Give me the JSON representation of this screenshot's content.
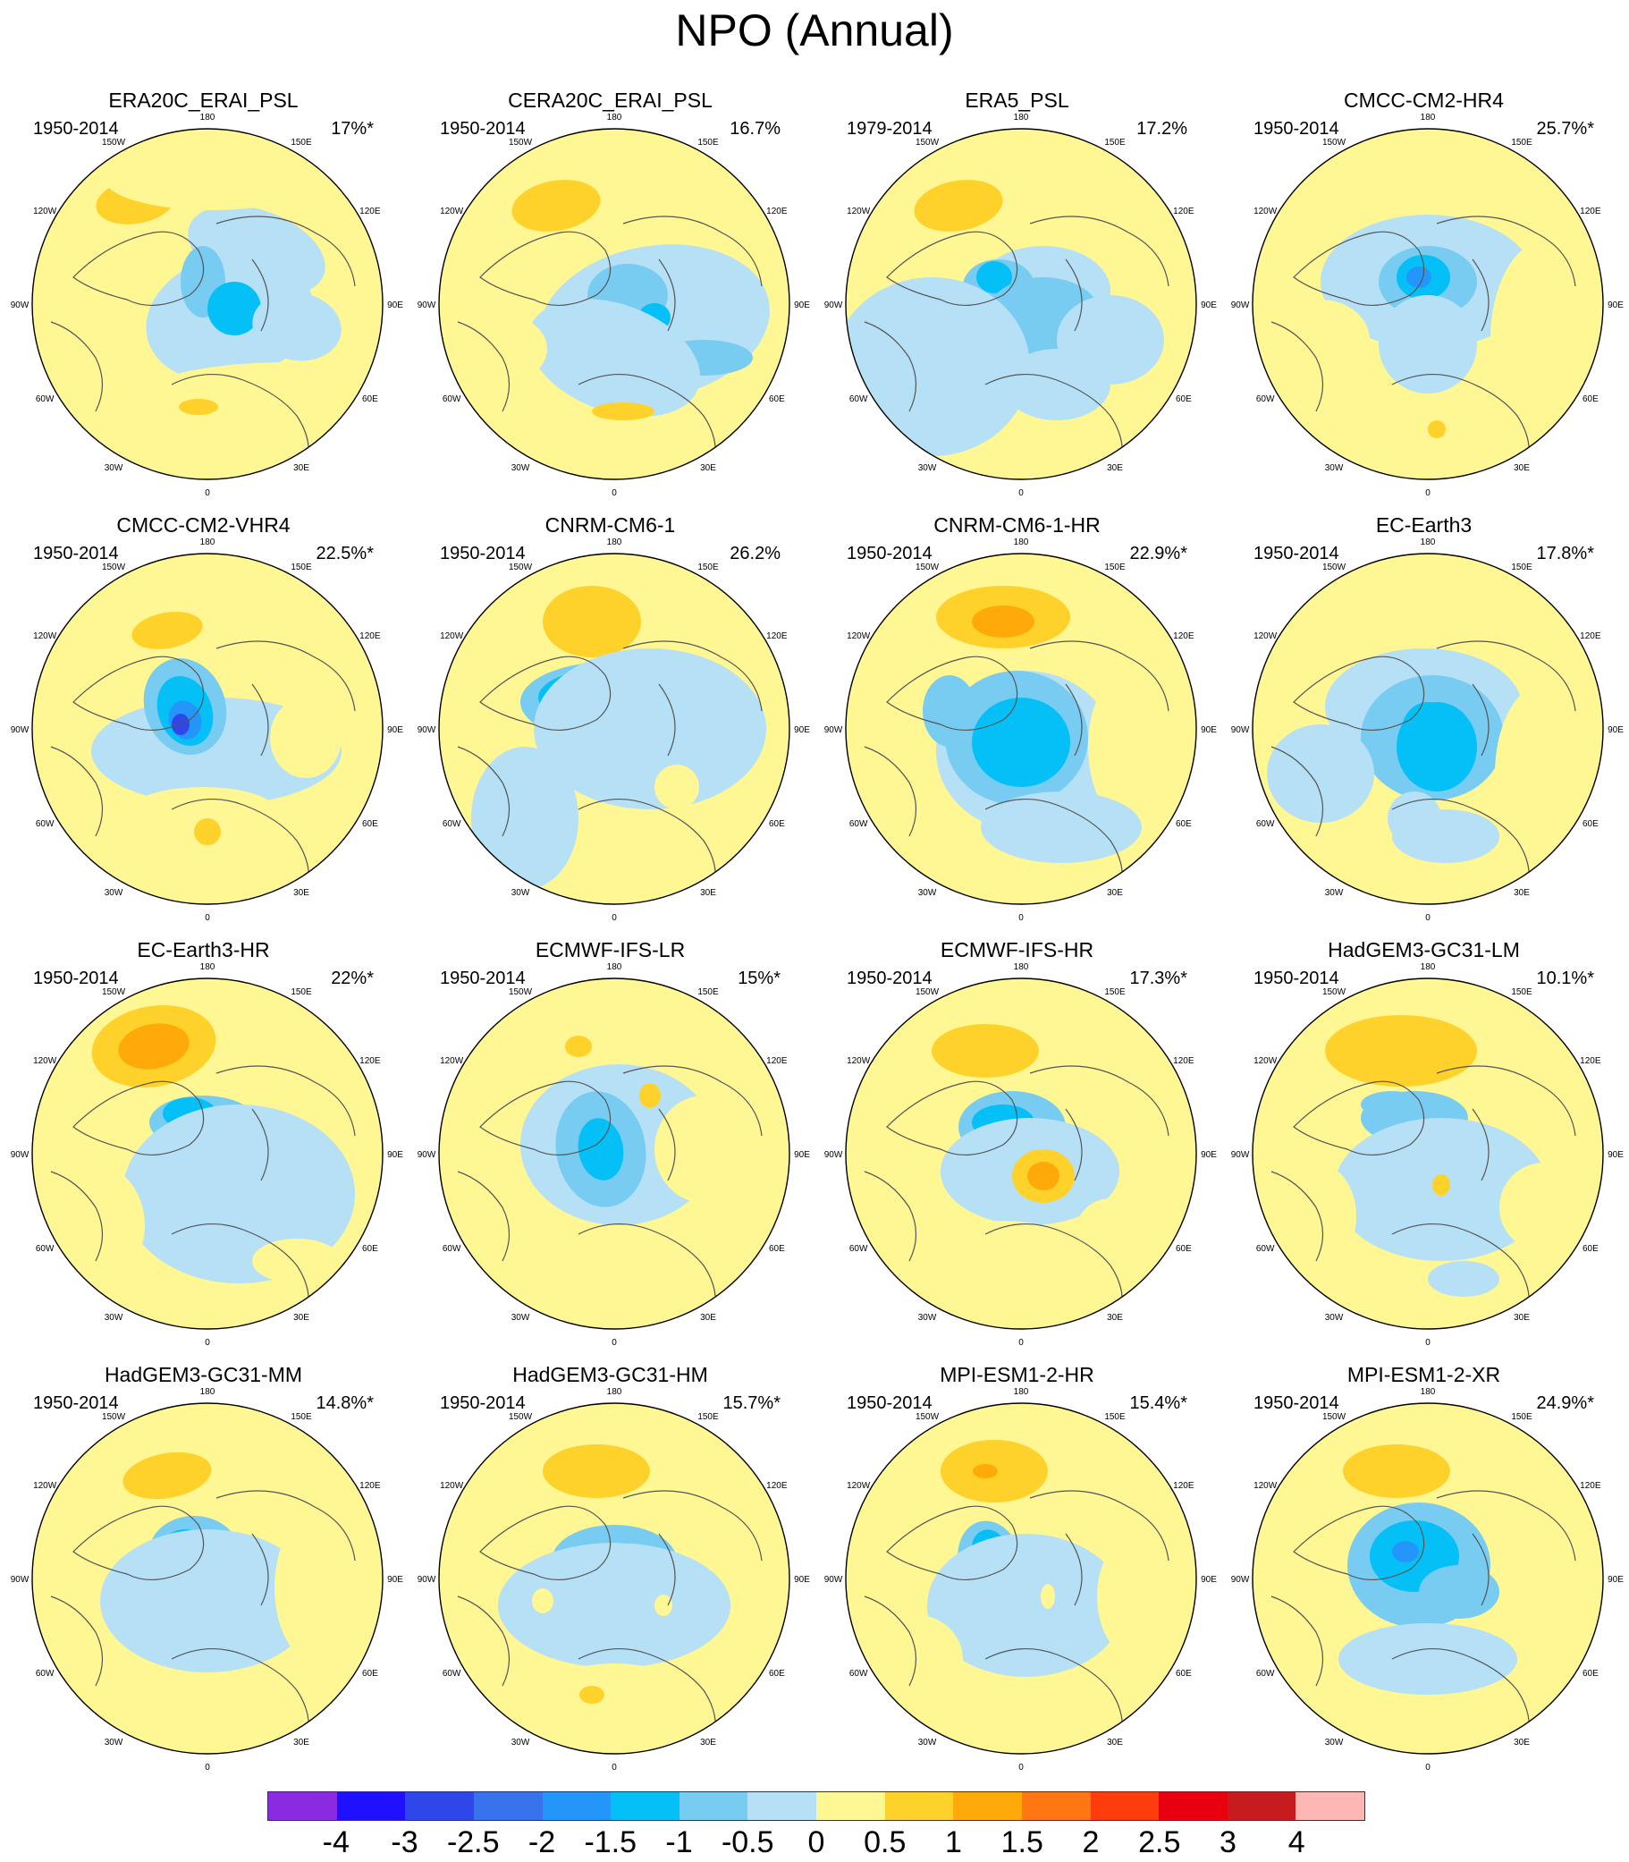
{
  "figure": {
    "title": "NPO (Annual)"
  },
  "colorbar": {
    "colors": [
      "#8a2be2",
      "#1f10ff",
      "#2f46ea",
      "#3872ec",
      "#2496fa",
      "#05c0f7",
      "#78cbf1",
      "#b6e0f6",
      "#fff694",
      "#ffd22b",
      "#ffaa08",
      "#ff7712",
      "#ff3c0c",
      "#e8000e",
      "#c71c1f",
      "#ffb7b3"
    ],
    "ticks": [
      "-4",
      "-3",
      "-2.5",
      "-2",
      "-1.5",
      "-1",
      "-0.5",
      "0",
      "0.5",
      "1",
      "1.5",
      "2",
      "2.5",
      "3",
      "4"
    ]
  },
  "longitude_labels": [
    "180",
    "150E",
    "120E",
    "90E",
    "60E",
    "30E",
    "0",
    "30W",
    "60W",
    "90W",
    "120W",
    "150W"
  ],
  "panels": [
    {
      "title": "ERA20C_ERAI_PSL",
      "period": "1950-2014",
      "variance": "17%*",
      "patches": [
        [
          120,
          115,
          45,
          25,
          -10,
          "#ffd22b"
        ],
        [
          255,
          170,
          80,
          45,
          20,
          "#b6e0f6"
        ],
        [
          225,
          245,
          95,
          70,
          -15,
          "#b6e0f6"
        ],
        [
          195,
          205,
          25,
          40,
          0,
          "#78cbf1"
        ],
        [
          230,
          235,
          30,
          30,
          0,
          "#05c0f7"
        ],
        [
          300,
          255,
          50,
          38,
          10,
          "#b6e0f6"
        ],
        [
          290,
          345,
          185,
          50,
          0,
          "#fff694"
        ],
        [
          190,
          345,
          22,
          9,
          0,
          "#ffd22b"
        ],
        [
          205,
          90,
          120,
          35,
          0,
          "#fff694"
        ]
      ]
    },
    {
      "title": "CERA20C_ERAI_PSL",
      "period": "1950-2014",
      "variance": "16.7%",
      "patches": [
        [
          135,
          120,
          50,
          28,
          -10,
          "#ffd22b"
        ],
        [
          245,
          250,
          130,
          85,
          -10,
          "#b6e0f6"
        ],
        [
          215,
          220,
          45,
          35,
          0,
          "#78cbf1"
        ],
        [
          245,
          245,
          18,
          16,
          0,
          "#05c0f7"
        ],
        [
          300,
          290,
          55,
          20,
          0,
          "#78cbf1"
        ],
        [
          200,
          290,
          100,
          60,
          20,
          "#b6e0f6"
        ],
        [
          210,
          350,
          35,
          10,
          0,
          "#ffd22b"
        ],
        [
          70,
          280,
          55,
          40,
          0,
          "#fff694"
        ]
      ]
    },
    {
      "title": "ERA5_PSL",
      "period": "1979-2014",
      "variance": "17.2%",
      "patches": [
        [
          130,
          120,
          50,
          28,
          -10,
          "#ffd22b"
        ],
        [
          225,
          215,
          75,
          50,
          0,
          "#b6e0f6"
        ],
        [
          175,
          210,
          40,
          30,
          0,
          "#78cbf1"
        ],
        [
          170,
          200,
          20,
          18,
          0,
          "#05c0f7"
        ],
        [
          225,
          245,
          65,
          45,
          0,
          "#78cbf1"
        ],
        [
          100,
          300,
          110,
          100,
          0,
          "#b6e0f6"
        ],
        [
          300,
          270,
          60,
          50,
          0,
          "#b6e0f6"
        ],
        [
          240,
          320,
          60,
          40,
          0,
          "#b6e0f6"
        ]
      ]
    },
    {
      "title": "CMCC-CM2-HR4",
      "period": "1950-2014",
      "variance": "25.7%*",
      "patches": [
        [
          200,
          205,
          120,
          75,
          0,
          "#b6e0f6"
        ],
        [
          200,
          205,
          55,
          40,
          0,
          "#78cbf1"
        ],
        [
          195,
          200,
          30,
          25,
          0,
          "#05c0f7"
        ],
        [
          190,
          200,
          14,
          12,
          0,
          "#2496fa"
        ],
        [
          200,
          275,
          55,
          55,
          0,
          "#b6e0f6"
        ],
        [
          80,
          270,
          55,
          45,
          0,
          "#fff694"
        ],
        [
          330,
          270,
          60,
          110,
          0,
          "#fff694"
        ],
        [
          210,
          375,
          70,
          45,
          0,
          "#fff694"
        ],
        [
          210,
          370,
          10,
          10,
          0,
          "#ffd22b"
        ]
      ]
    },
    {
      "title": "CMCC-CM2-VHR4",
      "period": "1950-2014",
      "variance": "22.5%*",
      "patches": [
        [
          155,
          120,
          40,
          20,
          -10,
          "#ffd22b"
        ],
        [
          210,
          255,
          140,
          60,
          0,
          "#b6e0f6"
        ],
        [
          175,
          205,
          45,
          55,
          -20,
          "#78cbf1"
        ],
        [
          175,
          210,
          30,
          40,
          -20,
          "#05c0f7"
        ],
        [
          175,
          220,
          18,
          22,
          -20,
          "#2496fa"
        ],
        [
          170,
          225,
          10,
          12,
          0,
          "#2f46ea"
        ],
        [
          310,
          240,
          40,
          45,
          0,
          "#fff694"
        ],
        [
          195,
          320,
          80,
          25,
          0,
          "#fff694"
        ],
        [
          205,
          355,
          60,
          30,
          0,
          "#fff694"
        ],
        [
          200,
          345,
          15,
          15,
          0,
          "#ffd22b"
        ]
      ]
    },
    {
      "title": "CNRM-CM6-1",
      "period": "1950-2014",
      "variance": "26.2%",
      "patches": [
        [
          175,
          110,
          55,
          40,
          0,
          "#ffd22b"
        ],
        [
          195,
          200,
          100,
          45,
          0,
          "#78cbf1"
        ],
        [
          190,
          195,
          75,
          32,
          0,
          "#05c0f7"
        ],
        [
          190,
          195,
          30,
          18,
          0,
          "#2496fa"
        ],
        [
          190,
          200,
          15,
          10,
          0,
          "#3872ec"
        ],
        [
          240,
          230,
          130,
          90,
          0,
          "#b6e0f6"
        ],
        [
          70,
          260,
          40,
          45,
          0,
          "#fff694"
        ],
        [
          100,
          330,
          60,
          80,
          0,
          "#b6e0f6"
        ],
        [
          270,
          295,
          25,
          25,
          0,
          "#fff694"
        ]
      ]
    },
    {
      "title": "CNRM-CM6-1-HR",
      "period": "1950-2014",
      "variance": "22.9%*",
      "patches": [
        [
          180,
          105,
          75,
          35,
          0,
          "#ffd22b"
        ],
        [
          180,
          110,
          35,
          18,
          0,
          "#ffaa08"
        ],
        [
          205,
          255,
          100,
          90,
          0,
          "#b6e0f6"
        ],
        [
          195,
          240,
          80,
          75,
          0,
          "#78cbf1"
        ],
        [
          200,
          245,
          55,
          50,
          0,
          "#05c0f7"
        ],
        [
          120,
          210,
          30,
          40,
          0,
          "#78cbf1"
        ],
        [
          320,
          250,
          45,
          85,
          0,
          "#fff694"
        ],
        [
          245,
          340,
          90,
          40,
          0,
          "#b6e0f6"
        ]
      ]
    },
    {
      "title": "EC-Earth3",
      "period": "1950-2014",
      "variance": "17.8%*",
      "patches": [
        [
          195,
          205,
          110,
          65,
          0,
          "#b6e0f6"
        ],
        [
          205,
          240,
          80,
          70,
          0,
          "#78cbf1"
        ],
        [
          210,
          250,
          45,
          50,
          0,
          "#05c0f7"
        ],
        [
          200,
          235,
          30,
          35,
          0,
          "#05c0f7"
        ],
        [
          80,
          280,
          60,
          55,
          0,
          "#b6e0f6"
        ],
        [
          330,
          280,
          55,
          100,
          0,
          "#fff694"
        ],
        [
          220,
          350,
          60,
          30,
          0,
          "#b6e0f6"
        ],
        [
          185,
          330,
          30,
          30,
          0,
          "#b6e0f6"
        ]
      ]
    },
    {
      "title": "EC-Earth3-HR",
      "period": "1950-2014",
      "variance": "22%*",
      "patches": [
        [
          140,
          110,
          70,
          45,
          -10,
          "#ffd22b"
        ],
        [
          140,
          110,
          40,
          25,
          -10,
          "#ffaa08"
        ],
        [
          195,
          195,
          60,
          30,
          0,
          "#78cbf1"
        ],
        [
          180,
          185,
          30,
          18,
          0,
          "#05c0f7"
        ],
        [
          235,
          275,
          130,
          100,
          0,
          "#b6e0f6"
        ],
        [
          70,
          310,
          60,
          70,
          0,
          "#fff694"
        ],
        [
          300,
          350,
          50,
          25,
          0,
          "#fff694"
        ]
      ]
    },
    {
      "title": "ECMWF-IFS-LR",
      "period": "1950-2014",
      "variance": "15%*",
      "patches": [
        [
          160,
          110,
          15,
          12,
          0,
          "#ffd22b"
        ],
        [
          205,
          220,
          110,
          90,
          0,
          "#b6e0f6"
        ],
        [
          185,
          225,
          50,
          65,
          -10,
          "#78cbf1"
        ],
        [
          185,
          225,
          25,
          35,
          -10,
          "#05c0f7"
        ],
        [
          240,
          165,
          12,
          14,
          0,
          "#ffd22b"
        ],
        [
          300,
          225,
          55,
          60,
          0,
          "#fff694"
        ],
        [
          220,
          370,
          110,
          40,
          0,
          "#fff694"
        ],
        [
          60,
          255,
          35,
          40,
          0,
          "#fff694"
        ]
      ]
    },
    {
      "title": "ECMWF-IFS-HR",
      "period": "1950-2014",
      "variance": "17.3%*",
      "patches": [
        [
          160,
          115,
          60,
          30,
          0,
          "#ffd22b"
        ],
        [
          190,
          200,
          60,
          40,
          0,
          "#78cbf1"
        ],
        [
          180,
          195,
          35,
          20,
          0,
          "#05c0f7"
        ],
        [
          210,
          250,
          100,
          60,
          0,
          "#b6e0f6"
        ],
        [
          225,
          255,
          35,
          30,
          0,
          "#ffd22b"
        ],
        [
          225,
          255,
          18,
          16,
          0,
          "#ffaa08"
        ],
        [
          180,
          330,
          70,
          25,
          0,
          "#fff694"
        ],
        [
          300,
          320,
          40,
          40,
          0,
          "#fff694"
        ]
      ]
    },
    {
      "title": "HadGEM3-GC31-LM",
      "period": "1950-2014",
      "variance": "10.1%*",
      "patches": [
        [
          170,
          115,
          85,
          40,
          0,
          "#ffd22b"
        ],
        [
          185,
          190,
          60,
          30,
          0,
          "#78cbf1"
        ],
        [
          215,
          270,
          120,
          80,
          0,
          "#b6e0f6"
        ],
        [
          160,
          175,
          35,
          15,
          0,
          "#78cbf1"
        ],
        [
          215,
          265,
          10,
          12,
          0,
          "#ffd22b"
        ],
        [
          75,
          300,
          45,
          60,
          0,
          "#fff694"
        ],
        [
          330,
          290,
          50,
          50,
          0,
          "#fff694"
        ],
        [
          240,
          370,
          40,
          20,
          0,
          "#b6e0f6"
        ]
      ]
    },
    {
      "title": "HadGEM3-GC31-MM",
      "period": "1950-2014",
      "variance": "14.8%*",
      "patches": [
        [
          155,
          115,
          50,
          25,
          -10,
          "#ffd22b"
        ],
        [
          185,
          200,
          50,
          40,
          0,
          "#78cbf1"
        ],
        [
          175,
          195,
          25,
          20,
          0,
          "#05c0f7"
        ],
        [
          165,
          195,
          12,
          10,
          0,
          "#2496fa"
        ],
        [
          200,
          255,
          120,
          80,
          0,
          "#b6e0f6"
        ],
        [
          330,
          240,
          55,
          90,
          0,
          "#fff694"
        ],
        [
          90,
          370,
          60,
          35,
          0,
          "#fff694"
        ]
      ]
    },
    {
      "title": "HadGEM3-GC31-HM",
      "period": "1950-2014",
      "variance": "15.7%*",
      "patches": [
        [
          180,
          110,
          60,
          30,
          0,
          "#ffd22b"
        ],
        [
          200,
          210,
          70,
          40,
          0,
          "#78cbf1"
        ],
        [
          210,
          220,
          40,
          30,
          0,
          "#05c0f7"
        ],
        [
          200,
          260,
          130,
          70,
          0,
          "#b6e0f6"
        ],
        [
          120,
          255,
          12,
          14,
          0,
          "#fff694"
        ],
        [
          255,
          260,
          10,
          12,
          0,
          "#fff694"
        ],
        [
          200,
          360,
          80,
          35,
          0,
          "#fff694"
        ],
        [
          175,
          360,
          14,
          10,
          0,
          "#ffd22b"
        ]
      ]
    },
    {
      "title": "MPI-ESM1-2-HR",
      "period": "1950-2014",
      "variance": "15.4%*",
      "patches": [
        [
          170,
          110,
          60,
          35,
          0,
          "#ffd22b"
        ],
        [
          160,
          110,
          14,
          8,
          0,
          "#ffaa08"
        ],
        [
          165,
          210,
          35,
          45,
          -15,
          "#78cbf1"
        ],
        [
          165,
          200,
          20,
          25,
          -15,
          "#05c0f7"
        ],
        [
          205,
          260,
          110,
          80,
          0,
          "#b6e0f6"
        ],
        [
          230,
          250,
          8,
          14,
          0,
          "#fff694"
        ],
        [
          330,
          250,
          45,
          70,
          0,
          "#fff694"
        ],
        [
          80,
          320,
          55,
          50,
          0,
          "#fff694"
        ]
      ]
    },
    {
      "title": "MPI-ESM1-2-XR",
      "period": "1950-2014",
      "variance": "24.9%*",
      "patches": [
        [
          165,
          110,
          60,
          30,
          0,
          "#ffd22b"
        ],
        [
          190,
          215,
          80,
          70,
          0,
          "#78cbf1"
        ],
        [
          185,
          205,
          50,
          40,
          0,
          "#05c0f7"
        ],
        [
          175,
          200,
          15,
          12,
          0,
          "#2496fa"
        ],
        [
          235,
          245,
          45,
          30,
          0,
          "#78cbf1"
        ],
        [
          330,
          275,
          45,
          70,
          0,
          "#fff694"
        ],
        [
          100,
          285,
          30,
          30,
          0,
          "#fff694"
        ],
        [
          200,
          320,
          100,
          40,
          0,
          "#b6e0f6"
        ]
      ]
    }
  ]
}
